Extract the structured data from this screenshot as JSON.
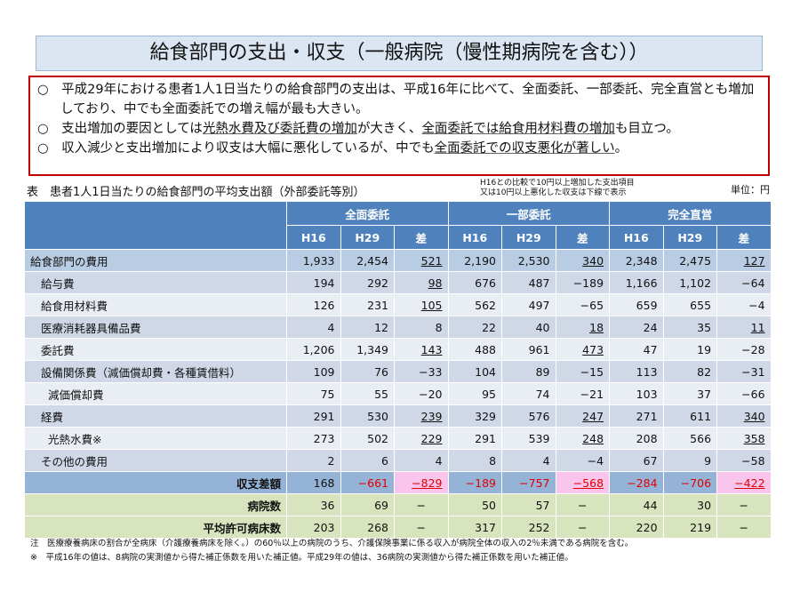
{
  "title": "給食部門の支出・収支（一般病院（慢性期病院を含む））",
  "summary": {
    "p1": "○　平成29年における患者1人1日当たりの給食部門の支出は、平成16年に比べて、全面委託、一部委託、完全直営とも増加しており、中でも全面委託での増え幅が最も大きい。",
    "p2a": "○　支出増加の要因としては",
    "p2b": "光熱水費及び委託費の増加",
    "p2c": "が大きく、",
    "p2d": "全面委託では給食用材料費の増加",
    "p2e": "も目立つ。",
    "p3a": "○　収入減少と支出増加により収支は大幅に悪化しているが、中でも",
    "p3b": "全面委託での収支悪化が著しい",
    "p3c": "。"
  },
  "caption": "表　患者1人1日当たりの給食部門の平均支出額（外部委託等別）",
  "legend_note_1": "H16との比較で10円以上増加した支出項目",
  "legend_note_2": "又は10円以上悪化した収支は下線で表示",
  "unit": "単位：円",
  "groups": [
    "全面委託",
    "一部委託",
    "完全直営"
  ],
  "subheaders": [
    "H16",
    "H29",
    "差",
    "H16",
    "H29",
    "差",
    "H16",
    "H29",
    "差"
  ],
  "rows": [
    {
      "label": "給食部門の費用",
      "type": "r0",
      "values": [
        "1,933",
        "2,454",
        "521",
        "2,190",
        "2,530",
        "340",
        "2,348",
        "2,475",
        "127"
      ],
      "underlined": [
        2,
        5,
        8
      ]
    },
    {
      "label": "給与費",
      "type": "odd",
      "indent": true,
      "values": [
        "194",
        "292",
        "98",
        "676",
        "487",
        "−189",
        "1,166",
        "1,102",
        "−64"
      ],
      "underlined": [
        2
      ]
    },
    {
      "label": "給食用材料費",
      "type": "even",
      "indent": true,
      "values": [
        "126",
        "231",
        "105",
        "562",
        "497",
        "−65",
        "659",
        "655",
        "−4"
      ],
      "underlined": [
        2
      ]
    },
    {
      "label": "医療消耗器具備品費",
      "type": "odd",
      "indent": true,
      "values": [
        "4",
        "12",
        "8",
        "22",
        "40",
        "18",
        "24",
        "35",
        "11"
      ],
      "underlined": [
        5,
        8
      ]
    },
    {
      "label": "委託費",
      "type": "even",
      "indent": true,
      "values": [
        "1,206",
        "1,349",
        "143",
        "488",
        "961",
        "473",
        "47",
        "19",
        "−28"
      ],
      "underlined": [
        2,
        5
      ]
    },
    {
      "label": "設備関係費（減価償却費・各種賃借料）",
      "type": "odd",
      "indent": true,
      "values": [
        "109",
        "76",
        "−33",
        "104",
        "89",
        "−15",
        "113",
        "82",
        "−31"
      ],
      "underlined": []
    },
    {
      "label": "減価償却費",
      "type": "even",
      "indent2": true,
      "values": [
        "75",
        "55",
        "−20",
        "95",
        "74",
        "−21",
        "103",
        "37",
        "−66"
      ],
      "underlined": []
    },
    {
      "label": "経費",
      "type": "odd",
      "indent": true,
      "values": [
        "291",
        "530",
        "239",
        "329",
        "576",
        "247",
        "271",
        "611",
        "340"
      ],
      "underlined": [
        2,
        5,
        8
      ]
    },
    {
      "label": "光熱水費※",
      "type": "even",
      "indent2": true,
      "values": [
        "273",
        "502",
        "229",
        "291",
        "539",
        "248",
        "208",
        "566",
        "358"
      ],
      "underlined": [
        2,
        5,
        8
      ]
    },
    {
      "label": "その他の費用",
      "type": "odd",
      "indent": true,
      "values": [
        "2",
        "6",
        "4",
        "8",
        "4",
        "−4",
        "67",
        "9",
        "−58"
      ],
      "underlined": []
    },
    {
      "label": "収支差額",
      "type": "bal",
      "right": true,
      "values": [
        "168",
        "−661",
        "−829",
        "−189",
        "−757",
        "−568",
        "−284",
        "−706",
        "−422"
      ],
      "underlined": [
        2,
        5,
        8
      ],
      "red": [
        1,
        2,
        3,
        4,
        5,
        6,
        7,
        8
      ],
      "pink": [
        2,
        5,
        8
      ]
    },
    {
      "label": "病院数",
      "type": "grn",
      "right": true,
      "values": [
        "36",
        "69",
        "−",
        "50",
        "57",
        "−",
        "44",
        "30",
        "−"
      ],
      "underlined": []
    },
    {
      "label": "平均許可病床数",
      "type": "grn",
      "right": true,
      "values": [
        "203",
        "268",
        "−",
        "317",
        "252",
        "−",
        "220",
        "219",
        "−"
      ],
      "underlined": []
    }
  ],
  "note1": "注　医療療養病床の割合が全病床（介護療養病床を除く。）の60％以上の病院のうち、介護保険事業に係る収入が病院全体の収入の2％未満である病院を含む。",
  "note2": "※　平成16年の値は、8病院の実測値から得た補正係数を用いた補正値。平成29年の値は、36病院の実測値から得た補正係数を用いた補正値。",
  "colors": {
    "header": "#4f81bd",
    "title_bg": "#dce6f2",
    "border_red": "#c00000",
    "negative": "#e00000",
    "highlight_pink": "#f9c5ec",
    "green_rows": "#d7e4bd"
  }
}
